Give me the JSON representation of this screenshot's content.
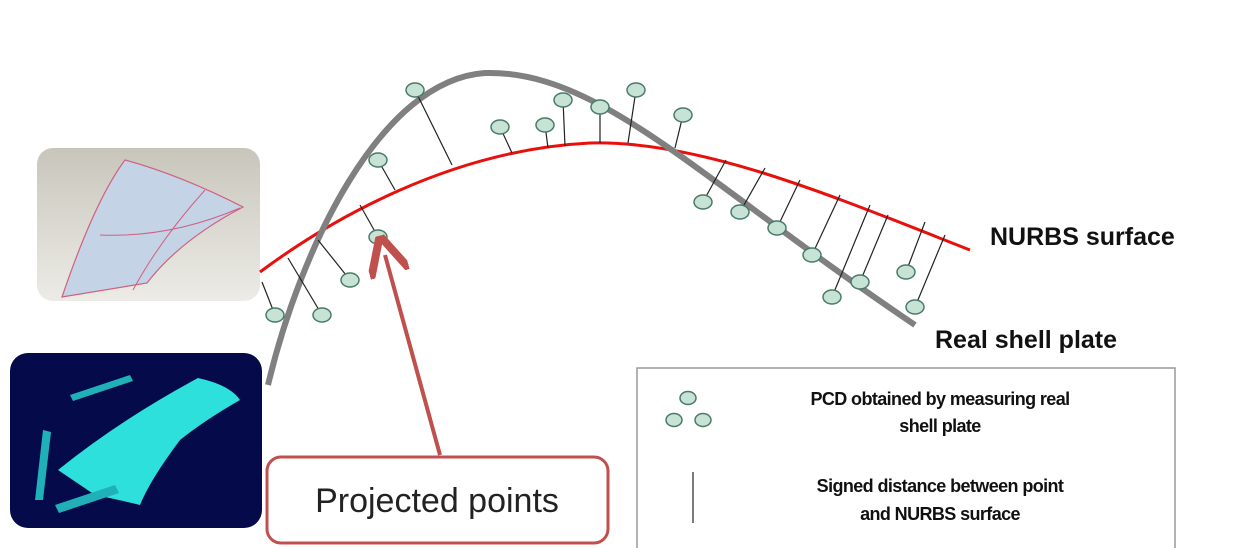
{
  "labels": {
    "nurbs": "NURBS surface",
    "real": "Real shell plate"
  },
  "callout": "Projected points",
  "legend": {
    "items": [
      {
        "lines": [
          "PCD obtained by measuring real",
          "shell plate"
        ]
      },
      {
        "lines": [
          "Signed distance between point",
          "and NURBS surface"
        ]
      }
    ]
  }
}
